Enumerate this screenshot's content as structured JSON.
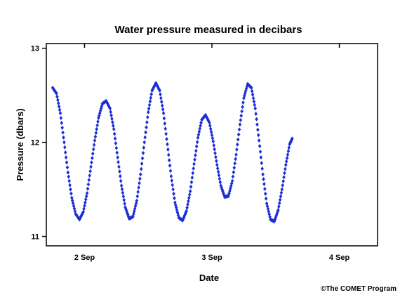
{
  "chart_data": {
    "type": "scatter",
    "title": "Water pressure measured in decibars",
    "xlabel": "Date",
    "ylabel": "Pressure (dbars)",
    "x_unit": "day of September",
    "xlim": [
      1.7,
      4.3
    ],
    "ylim": [
      10.9,
      13.05
    ],
    "x_ticks": [
      {
        "value": 2,
        "label": "2 Sep"
      },
      {
        "value": 3,
        "label": "3 Sep"
      },
      {
        "value": 4,
        "label": "4 Sep"
      }
    ],
    "y_ticks": [
      {
        "value": 11,
        "label": "11"
      },
      {
        "value": 12,
        "label": "12"
      },
      {
        "value": 13,
        "label": "13"
      }
    ],
    "series": [
      {
        "color": "#1c2fd6",
        "marker": "diamond",
        "points": [
          [
            1.75,
            12.58
          ],
          [
            1.78,
            12.52
          ],
          [
            1.81,
            12.31
          ],
          [
            1.84,
            12.0
          ],
          [
            1.87,
            11.68
          ],
          [
            1.9,
            11.41
          ],
          [
            1.93,
            11.24
          ],
          [
            1.96,
            11.18
          ],
          [
            1.99,
            11.26
          ],
          [
            2.02,
            11.46
          ],
          [
            2.05,
            11.74
          ],
          [
            2.08,
            12.02
          ],
          [
            2.11,
            12.26
          ],
          [
            2.14,
            12.41
          ],
          [
            2.17,
            12.44
          ],
          [
            2.2,
            12.36
          ],
          [
            2.23,
            12.14
          ],
          [
            2.26,
            11.84
          ],
          [
            2.29,
            11.54
          ],
          [
            2.32,
            11.31
          ],
          [
            2.35,
            11.19
          ],
          [
            2.38,
            11.21
          ],
          [
            2.41,
            11.38
          ],
          [
            2.44,
            11.66
          ],
          [
            2.47,
            12.0
          ],
          [
            2.5,
            12.32
          ],
          [
            2.53,
            12.55
          ],
          [
            2.56,
            12.63
          ],
          [
            2.59,
            12.55
          ],
          [
            2.62,
            12.31
          ],
          [
            2.65,
            11.98
          ],
          [
            2.68,
            11.64
          ],
          [
            2.71,
            11.36
          ],
          [
            2.74,
            11.2
          ],
          [
            2.77,
            11.17
          ],
          [
            2.8,
            11.27
          ],
          [
            2.83,
            11.48
          ],
          [
            2.86,
            11.77
          ],
          [
            2.89,
            12.05
          ],
          [
            2.92,
            12.24
          ],
          [
            2.95,
            12.29
          ],
          [
            2.98,
            12.21
          ],
          [
            3.01,
            12.01
          ],
          [
            3.04,
            11.76
          ],
          [
            3.07,
            11.54
          ],
          [
            3.1,
            11.42
          ],
          [
            3.13,
            11.43
          ],
          [
            3.16,
            11.59
          ],
          [
            3.19,
            11.87
          ],
          [
            3.22,
            12.19
          ],
          [
            3.25,
            12.47
          ],
          [
            3.28,
            12.62
          ],
          [
            3.31,
            12.58
          ],
          [
            3.34,
            12.36
          ],
          [
            3.37,
            12.02
          ],
          [
            3.4,
            11.66
          ],
          [
            3.43,
            11.35
          ],
          [
            3.46,
            11.18
          ],
          [
            3.49,
            11.16
          ],
          [
            3.52,
            11.28
          ],
          [
            3.55,
            11.5
          ],
          [
            3.58,
            11.76
          ],
          [
            3.61,
            11.98
          ],
          [
            3.63,
            12.04
          ]
        ]
      }
    ]
  },
  "credit": "©The COMET Program"
}
